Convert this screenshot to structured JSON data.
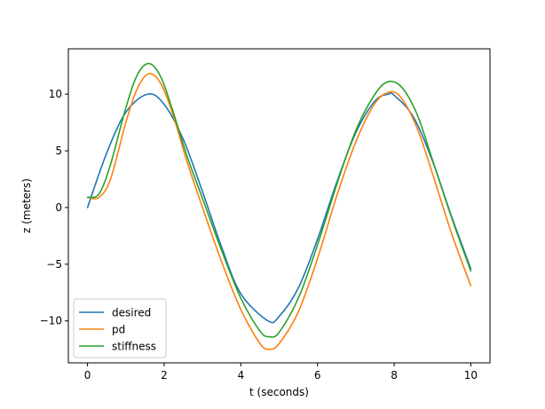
{
  "chart_data": {
    "type": "line",
    "xlabel": "t (seconds)",
    "ylabel": "z (meters)",
    "xlim": [
      -0.5,
      10.5
    ],
    "ylim": [
      -13.7,
      14.0
    ],
    "xticks": [
      0,
      2,
      4,
      6,
      8,
      10
    ],
    "xtick_labels": [
      "0",
      "2",
      "4",
      "6",
      "8",
      "10"
    ],
    "yticks": [
      -10,
      -5,
      0,
      5,
      10
    ],
    "ytick_labels": [
      "−10",
      "−5",
      "0",
      "5",
      "10"
    ],
    "grid": false,
    "legend_position": "lower-left",
    "series": [
      {
        "name": "desired",
        "color": "#1f77b4",
        "points": [
          [
            0,
            0.0
          ],
          [
            0.5,
            4.8
          ],
          [
            1.0,
            8.4
          ],
          [
            1.57,
            10.0
          ],
          [
            2.0,
            9.1
          ],
          [
            2.5,
            6.0
          ],
          [
            3.0,
            1.4
          ],
          [
            3.5,
            -3.5
          ],
          [
            4.0,
            -7.6
          ],
          [
            4.71,
            -10.0
          ],
          [
            5.0,
            -9.6
          ],
          [
            5.5,
            -7.1
          ],
          [
            6.0,
            -2.8
          ],
          [
            6.5,
            2.2
          ],
          [
            7.0,
            6.6
          ],
          [
            7.5,
            9.4
          ],
          [
            7.85,
            10.0
          ],
          [
            8.0,
            9.9
          ],
          [
            8.5,
            8.0
          ],
          [
            9.0,
            4.1
          ],
          [
            9.5,
            -0.8
          ],
          [
            10.0,
            -5.4
          ]
        ]
      },
      {
        "name": "pd",
        "color": "#ff7f0e",
        "points": [
          [
            0,
            0.9
          ],
          [
            0.3,
            0.9
          ],
          [
            0.6,
            2.5
          ],
          [
            1.0,
            7.5
          ],
          [
            1.3,
            10.5
          ],
          [
            1.6,
            11.8
          ],
          [
            1.9,
            11.0
          ],
          [
            2.2,
            8.5
          ],
          [
            2.6,
            4.0
          ],
          [
            3.0,
            0.0
          ],
          [
            3.5,
            -4.8
          ],
          [
            4.0,
            -9.0
          ],
          [
            4.5,
            -12.0
          ],
          [
            4.75,
            -12.5
          ],
          [
            5.0,
            -12.0
          ],
          [
            5.5,
            -9.2
          ],
          [
            6.0,
            -4.5
          ],
          [
            6.5,
            1.0
          ],
          [
            7.0,
            5.8
          ],
          [
            7.5,
            9.2
          ],
          [
            7.9,
            10.2
          ],
          [
            8.2,
            9.6
          ],
          [
            8.6,
            7.0
          ],
          [
            9.0,
            3.0
          ],
          [
            9.5,
            -2.3
          ],
          [
            10.0,
            -6.9
          ]
        ]
      },
      {
        "name": "stiffness",
        "color": "#2ca02c",
        "points": [
          [
            0,
            0.9
          ],
          [
            0.3,
            1.2
          ],
          [
            0.6,
            3.8
          ],
          [
            1.0,
            8.8
          ],
          [
            1.3,
            11.7
          ],
          [
            1.6,
            12.7
          ],
          [
            1.9,
            11.6
          ],
          [
            2.2,
            8.8
          ],
          [
            2.6,
            4.5
          ],
          [
            3.0,
            0.8
          ],
          [
            3.5,
            -3.8
          ],
          [
            4.0,
            -8.0
          ],
          [
            4.5,
            -10.9
          ],
          [
            4.75,
            -11.4
          ],
          [
            5.0,
            -11.0
          ],
          [
            5.5,
            -8.0
          ],
          [
            6.0,
            -3.3
          ],
          [
            6.5,
            2.0
          ],
          [
            7.0,
            6.8
          ],
          [
            7.5,
            10.0
          ],
          [
            7.85,
            11.1
          ],
          [
            8.2,
            10.6
          ],
          [
            8.6,
            8.2
          ],
          [
            9.0,
            4.2
          ],
          [
            9.5,
            -0.9
          ],
          [
            10.0,
            -5.6
          ]
        ]
      }
    ]
  }
}
